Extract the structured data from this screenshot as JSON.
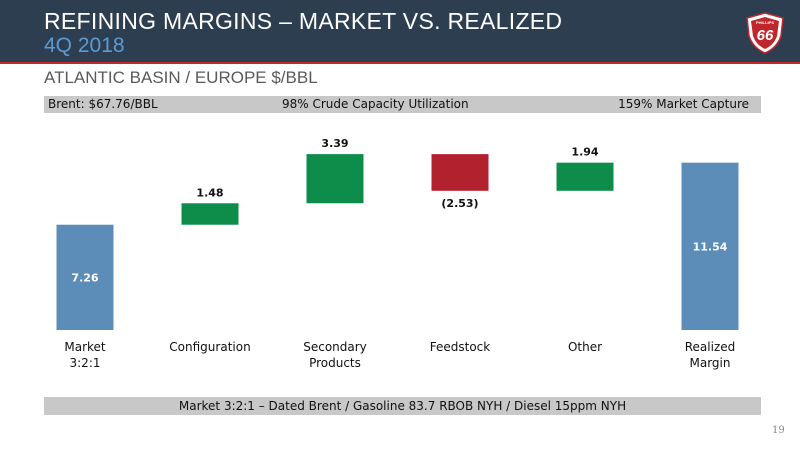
{
  "header": {
    "title": "REFINING MARGINS – MARKET VS. REALIZED",
    "subtitle": "4Q 2018",
    "logo_text": "PHILLIPS 66"
  },
  "section_title": "ATLANTIC BASIN / EUROPE $/BBL",
  "info_bar": {
    "brent": "Brent: $67.76/BBL",
    "utilization": "98% Crude Capacity Utilization",
    "capture": "159% Market Capture"
  },
  "footer_note": "Market 3:2:1 –  Dated Brent / Gasoline 83.7 RBOB NYH / Diesel 15ppm NYH",
  "page_number": "19",
  "colors": {
    "header_bg": "#2d3e50",
    "accent_blue": "#5b8db8",
    "positive_green": "#0e8c4a",
    "negative_red": "#b2222e"
  },
  "chart_data": {
    "type": "bar",
    "subtype": "waterfall",
    "ylim": [
      0,
      13
    ],
    "steps": [
      {
        "category": [
          "Market",
          "3:2:1"
        ],
        "value": 7.26,
        "label": "7.26",
        "kind": "total",
        "color": "#5b8db8"
      },
      {
        "category": [
          "Configuration"
        ],
        "value": 1.48,
        "label": "1.48",
        "kind": "delta",
        "color": "#0e8c4a"
      },
      {
        "category": [
          "Secondary",
          "Products"
        ],
        "value": 3.39,
        "label": "3.39",
        "kind": "delta",
        "color": "#0e8c4a"
      },
      {
        "category": [
          "Feedstock"
        ],
        "value": -2.53,
        "label": "(2.53)",
        "kind": "delta",
        "color": "#b2222e"
      },
      {
        "category": [
          "Other"
        ],
        "value": 1.94,
        "label": "1.94",
        "kind": "delta",
        "color": "#0e8c4a"
      },
      {
        "category": [
          "Realized",
          "Margin"
        ],
        "value": 11.54,
        "label": "11.54",
        "kind": "total",
        "color": "#5b8db8"
      }
    ]
  }
}
